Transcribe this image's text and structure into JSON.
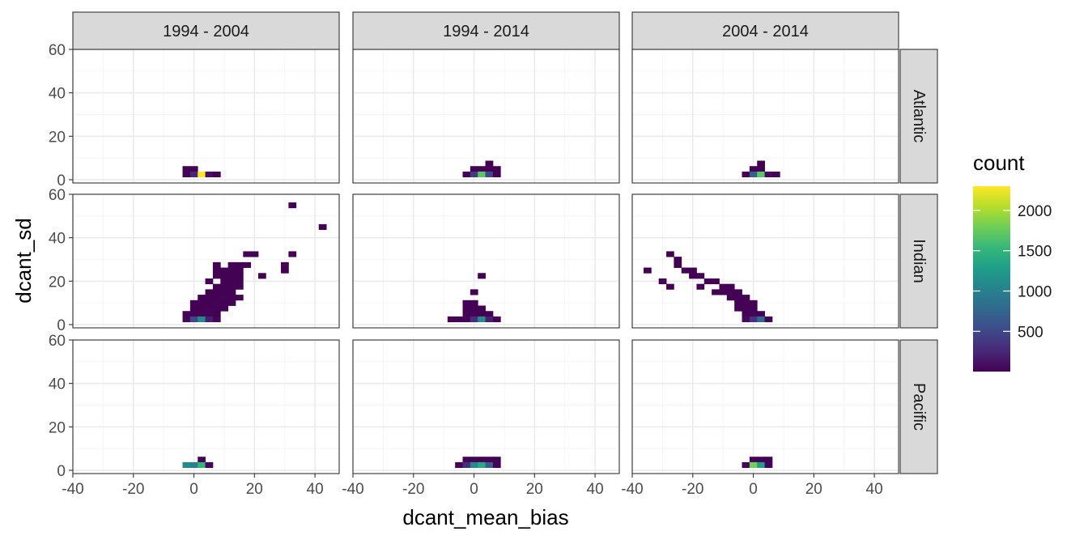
{
  "chart_data": {
    "type": "heatmap",
    "subtype": "faceted 2D bin (bin2d) plot",
    "xlabel": "dcant_mean_bias",
    "ylabel": "dcant_sd",
    "xlim": [
      -40,
      48
    ],
    "ylim": [
      -1.5,
      60
    ],
    "x_ticks": [
      -40,
      -20,
      0,
      20,
      40
    ],
    "y_ticks": [
      0,
      20,
      40,
      60
    ],
    "bin_width": {
      "x": 2.5,
      "y": 2.5
    },
    "grid": true,
    "legend": {
      "title": "count",
      "position": "right",
      "ticks": [
        500,
        1000,
        1500,
        2000
      ],
      "min": 1,
      "max": 2300,
      "colormap": "viridis",
      "colors": [
        "#440154",
        "#482878",
        "#3e4989",
        "#31688e",
        "#26828e",
        "#1f9e89",
        "#35b779",
        "#6ece58",
        "#b5de2b",
        "#fde725"
      ]
    },
    "col_facets": [
      "1994 - 2004",
      "1994 - 2014",
      "2004 - 2014"
    ],
    "row_facets": [
      "Atlantic",
      "Indian",
      "Pacific"
    ],
    "panels": [
      {
        "row": "Atlantic",
        "col": "1994 - 2004",
        "cells": [
          [
            -2.5,
            5,
            3
          ],
          [
            0,
            5,
            5
          ],
          [
            -2.5,
            2.5,
            8
          ],
          [
            0,
            2.5,
            250
          ],
          [
            2.5,
            2.5,
            2300
          ],
          [
            5,
            2.5,
            90
          ],
          [
            7.5,
            2.5,
            10
          ]
        ]
      },
      {
        "row": "Atlantic",
        "col": "1994 - 2014",
        "cells": [
          [
            5,
            7.5,
            3
          ],
          [
            0,
            5,
            5
          ],
          [
            2.5,
            5,
            8
          ],
          [
            5,
            5,
            10
          ],
          [
            7.5,
            5,
            6
          ],
          [
            -2.5,
            2.5,
            10
          ],
          [
            0,
            2.5,
            400
          ],
          [
            2.5,
            2.5,
            1700
          ],
          [
            5,
            2.5,
            500
          ],
          [
            7.5,
            2.5,
            12
          ]
        ]
      },
      {
        "row": "Atlantic",
        "col": "2004 - 2014",
        "cells": [
          [
            2.5,
            7.5,
            4
          ],
          [
            0,
            5,
            5
          ],
          [
            2.5,
            5,
            10
          ],
          [
            -2.5,
            2.5,
            8
          ],
          [
            0,
            2.5,
            700
          ],
          [
            2.5,
            2.5,
            1700
          ],
          [
            5,
            2.5,
            60
          ],
          [
            7.5,
            2.5,
            10
          ]
        ]
      },
      {
        "row": "Indian",
        "col": "1994 - 2004",
        "cells": [
          [
            32.5,
            55,
            3
          ],
          [
            42.5,
            45,
            3
          ],
          [
            17.5,
            32.5,
            5
          ],
          [
            20,
            32.5,
            6
          ],
          [
            32.5,
            32.5,
            4
          ],
          [
            7.5,
            27.5,
            5
          ],
          [
            12.5,
            27.5,
            8
          ],
          [
            15,
            27.5,
            10
          ],
          [
            17.5,
            27.5,
            6
          ],
          [
            30,
            27.5,
            4
          ],
          [
            7.5,
            25,
            5
          ],
          [
            10,
            25,
            6
          ],
          [
            12.5,
            25,
            8
          ],
          [
            15,
            25,
            7
          ],
          [
            30,
            25,
            4
          ],
          [
            7.5,
            22.5,
            6
          ],
          [
            10,
            22.5,
            7
          ],
          [
            12.5,
            22.5,
            9
          ],
          [
            15,
            22.5,
            8
          ],
          [
            22.5,
            22.5,
            5
          ],
          [
            5,
            20,
            5
          ],
          [
            10,
            20,
            6
          ],
          [
            12.5,
            20,
            10
          ],
          [
            15,
            20,
            8
          ],
          [
            7.5,
            17.5,
            5
          ],
          [
            10,
            17.5,
            7
          ],
          [
            12.5,
            17.5,
            9
          ],
          [
            15,
            17.5,
            6
          ],
          [
            5,
            15,
            4
          ],
          [
            7.5,
            15,
            6
          ],
          [
            10,
            15,
            10
          ],
          [
            12.5,
            15,
            8
          ],
          [
            2.5,
            12.5,
            4
          ],
          [
            5,
            12.5,
            6
          ],
          [
            7.5,
            12.5,
            8
          ],
          [
            10,
            12.5,
            12
          ],
          [
            12.5,
            12.5,
            6
          ],
          [
            15,
            12.5,
            4
          ],
          [
            0,
            10,
            5
          ],
          [
            2.5,
            10,
            8
          ],
          [
            5,
            10,
            10
          ],
          [
            7.5,
            10,
            12
          ],
          [
            10,
            10,
            8
          ],
          [
            12.5,
            10,
            5
          ],
          [
            0,
            7.5,
            8
          ],
          [
            2.5,
            7.5,
            10
          ],
          [
            5,
            7.5,
            15
          ],
          [
            7.5,
            7.5,
            12
          ],
          [
            10,
            7.5,
            6
          ],
          [
            -2.5,
            5,
            6
          ],
          [
            0,
            5,
            12
          ],
          [
            2.5,
            5,
            25
          ],
          [
            5,
            5,
            20
          ],
          [
            7.5,
            5,
            10
          ],
          [
            -2.5,
            2.5,
            30
          ],
          [
            0,
            2.5,
            500
          ],
          [
            2.5,
            2.5,
            1100
          ],
          [
            5,
            2.5,
            200
          ],
          [
            7.5,
            2.5,
            30
          ]
        ]
      },
      {
        "row": "Indian",
        "col": "1994 - 2014",
        "cells": [
          [
            2.5,
            22.5,
            3
          ],
          [
            0,
            15,
            4
          ],
          [
            -2.5,
            10,
            5
          ],
          [
            0,
            10,
            6
          ],
          [
            -2.5,
            7.5,
            6
          ],
          [
            0,
            7.5,
            8
          ],
          [
            2.5,
            7.5,
            5
          ],
          [
            -2.5,
            5,
            10
          ],
          [
            0,
            5,
            15
          ],
          [
            2.5,
            5,
            5
          ],
          [
            5,
            5,
            5
          ],
          [
            -7.5,
            2.5,
            4
          ],
          [
            -5,
            2.5,
            8
          ],
          [
            -2.5,
            2.5,
            30
          ],
          [
            0,
            2.5,
            300
          ],
          [
            2.5,
            2.5,
            1100
          ],
          [
            5,
            2.5,
            200
          ],
          [
            7.5,
            2.5,
            8
          ]
        ]
      },
      {
        "row": "Indian",
        "col": "2004 - 2014",
        "cells": [
          [
            -27.5,
            32.5,
            3
          ],
          [
            -25,
            30,
            4
          ],
          [
            -35,
            25,
            3
          ],
          [
            -25,
            27.5,
            3
          ],
          [
            -22.5,
            25,
            5
          ],
          [
            -20,
            25,
            5
          ],
          [
            -30,
            20,
            3
          ],
          [
            -20,
            22.5,
            5
          ],
          [
            -17.5,
            22.5,
            5
          ],
          [
            -15,
            20,
            5
          ],
          [
            -12.5,
            20,
            5
          ],
          [
            -27.5,
            17.5,
            3
          ],
          [
            -17.5,
            17.5,
            3
          ],
          [
            -10,
            17.5,
            5
          ],
          [
            -7.5,
            17.5,
            5
          ],
          [
            -12.5,
            15,
            5
          ],
          [
            -10,
            15,
            5
          ],
          [
            -7.5,
            15,
            5
          ],
          [
            -5,
            15,
            5
          ],
          [
            -7.5,
            12.5,
            5
          ],
          [
            -5,
            12.5,
            8
          ],
          [
            -2.5,
            12.5,
            6
          ],
          [
            -5,
            10,
            8
          ],
          [
            -2.5,
            10,
            10
          ],
          [
            0,
            10,
            8
          ],
          [
            -5,
            7.5,
            8
          ],
          [
            -2.5,
            7.5,
            12
          ],
          [
            0,
            7.5,
            10
          ],
          [
            -2.5,
            5,
            15
          ],
          [
            0,
            5,
            20
          ],
          [
            2.5,
            5,
            12
          ],
          [
            -2.5,
            2.5,
            60
          ],
          [
            0,
            2.5,
            350
          ],
          [
            2.5,
            2.5,
            800
          ],
          [
            5,
            2.5,
            30
          ]
        ]
      },
      {
        "row": "Pacific",
        "col": "1994 - 2004",
        "cells": [
          [
            2.5,
            5,
            5
          ],
          [
            -2.5,
            2.5,
            1100
          ],
          [
            0,
            2.5,
            1000
          ],
          [
            2.5,
            2.5,
            1500
          ],
          [
            5,
            2.5,
            40
          ]
        ]
      },
      {
        "row": "Pacific",
        "col": "1994 - 2014",
        "cells": [
          [
            -2.5,
            5,
            8
          ],
          [
            0,
            5,
            15
          ],
          [
            2.5,
            5,
            12
          ],
          [
            5,
            5,
            8
          ],
          [
            7.5,
            5,
            5
          ],
          [
            -5,
            2.5,
            15
          ],
          [
            -2.5,
            2.5,
            300
          ],
          [
            0,
            2.5,
            1100
          ],
          [
            2.5,
            2.5,
            1400
          ],
          [
            5,
            2.5,
            700
          ],
          [
            7.5,
            2.5,
            12
          ]
        ]
      },
      {
        "row": "Pacific",
        "col": "2004 - 2014",
        "cells": [
          [
            0,
            5,
            12
          ],
          [
            2.5,
            5,
            10
          ],
          [
            5,
            5,
            6
          ],
          [
            -2.5,
            2.5,
            30
          ],
          [
            0,
            2.5,
            1800
          ],
          [
            2.5,
            2.5,
            1300
          ],
          [
            5,
            2.5,
            20
          ]
        ]
      }
    ]
  }
}
